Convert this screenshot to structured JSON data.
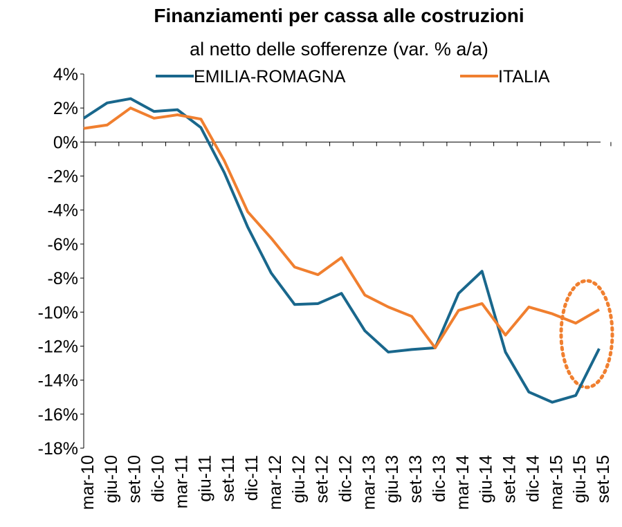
{
  "chart_data": {
    "type": "line",
    "title": "Finanziamenti per cassa alle costruzioni",
    "subtitle": "al netto delle sofferenze (var. % a/a)",
    "categories": [
      "mar-10",
      "giu-10",
      "set-10",
      "dic-10",
      "mar-11",
      "giu-11",
      "set-11",
      "dic-11",
      "mar-12",
      "giu-12",
      "set-12",
      "dic-12",
      "mar-13",
      "giu-13",
      "set-13",
      "dic-13",
      "mar-14",
      "giu-14",
      "set-14",
      "dic-14",
      "mar-15",
      "giu-15",
      "set-15"
    ],
    "series": [
      {
        "name": "EMILIA-ROMAGNA",
        "color": "#19678c",
        "values": [
          1.4,
          2.3,
          2.55,
          1.8,
          1.9,
          0.85,
          -1.8,
          -5.0,
          -7.7,
          -9.55,
          -9.5,
          -8.9,
          -11.1,
          -12.35,
          -12.2,
          -12.1,
          -8.9,
          -7.6,
          -12.35,
          -14.7,
          -15.3,
          -14.9,
          -12.15
        ]
      },
      {
        "name": "ITALIA",
        "color": "#f07f2f",
        "values": [
          0.8,
          1.0,
          2.0,
          1.4,
          1.6,
          1.35,
          -1.1,
          -4.1,
          -5.65,
          -7.35,
          -7.8,
          -6.8,
          -9.0,
          -9.7,
          -10.25,
          -12.1,
          -9.9,
          -9.5,
          -11.35,
          -9.7,
          -10.1,
          -10.65,
          -9.85
        ]
      }
    ],
    "ylim": [
      -18,
      4
    ],
    "yticks": [
      {
        "value": 4,
        "label": "4%"
      },
      {
        "value": 2,
        "label": "2%"
      },
      {
        "value": 0,
        "label": "0%"
      },
      {
        "value": -2,
        "label": "-2%"
      },
      {
        "value": -4,
        "label": "-4%"
      },
      {
        "value": -6,
        "label": "-6%"
      },
      {
        "value": -8,
        "label": "-8%"
      },
      {
        "value": -10,
        "label": "-10%"
      },
      {
        "value": -12,
        "label": "-12%"
      },
      {
        "value": -14,
        "label": "-14%"
      },
      {
        "value": -16,
        "label": "-16%"
      },
      {
        "value": -18,
        "label": "-18%"
      }
    ],
    "legend": "top"
  }
}
